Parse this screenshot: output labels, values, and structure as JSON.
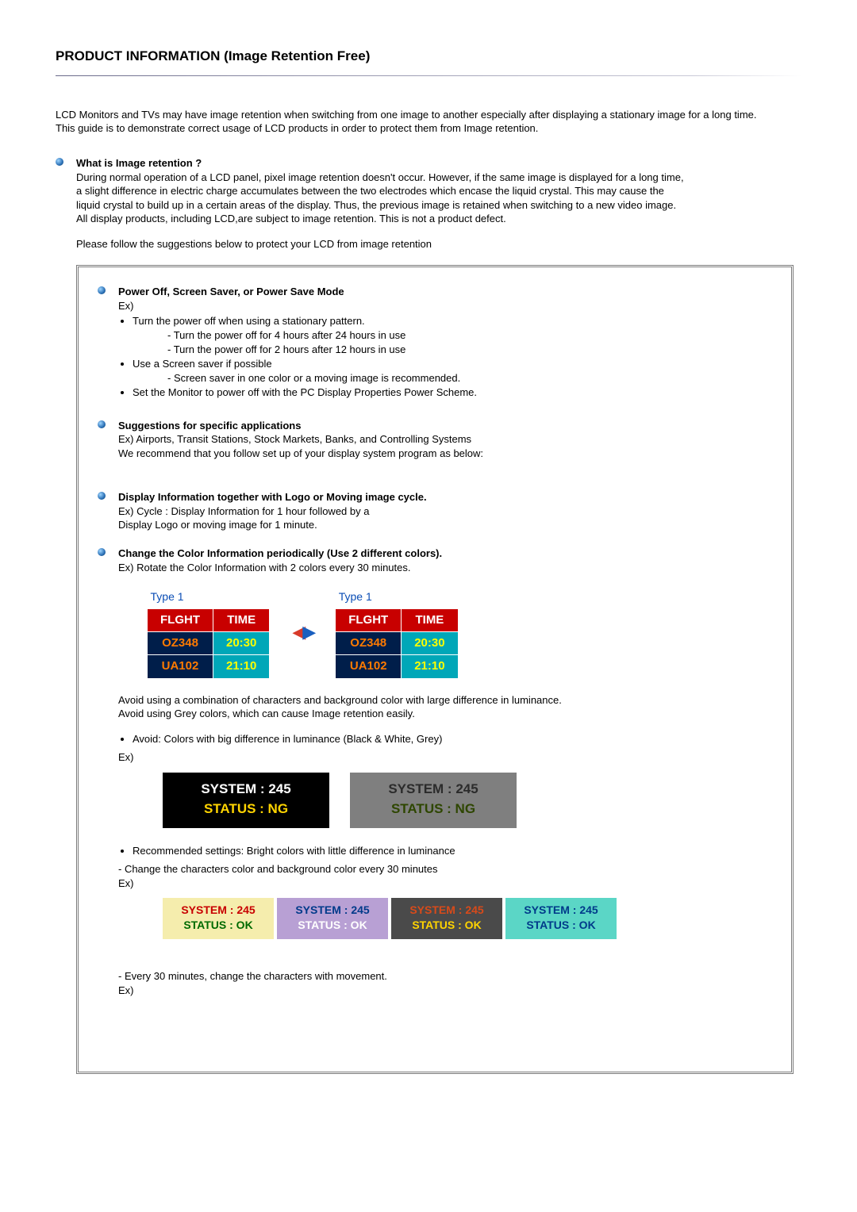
{
  "title": "PRODUCT INFORMATION (Image Retention Free)",
  "intro": {
    "line1": "LCD Monitors and TVs may have image retention when switching from one image to another especially after displaying a stationary image for a long time.",
    "line2": "This guide is to demonstrate correct usage of LCD products in order to protect them from Image retention."
  },
  "whatIs": {
    "heading": "What is Image retention ?",
    "body": "During normal operation of a LCD panel, pixel image retention doesn't occur. However, if the same image is displayed for a long time, a slight difference in electric charge accumulates between the two electrodes which encase the liquid crystal. This may cause the liquid crystal to build up in a certain areas of the display. Thus, the previous image is retained when switching to a new video image. All display products, including LCD,are subject to image retention. This is not a product defect.",
    "follow": "Please follow the suggestions below to protect your LCD from image retention"
  },
  "box": {
    "powerOff": {
      "heading": "Power Off, Screen Saver, or Power Save Mode",
      "ex": "Ex)",
      "li1": "Turn the power off when using a stationary pattern.",
      "li1a": "- Turn the power off for 4 hours after 24 hours in use",
      "li1b": "- Turn the power off for 2 hours after 12 hours in use",
      "li2": "Use a Screen saver if possible",
      "li2a": "- Screen saver in one color or a moving image is recommended.",
      "li3": "Set the Monitor to power off with the PC Display Properties Power Scheme."
    },
    "specific": {
      "heading": "Suggestions for specific applications",
      "l1": "Ex) Airports, Transit Stations, Stock Markets, Banks, and Controlling Systems",
      "l2": "We recommend that you follow set up of your display system program as below:"
    },
    "displayInfo": {
      "heading": "Display Information together with Logo or Moving image cycle.",
      "l1": "Ex) Cycle : Display Information for 1 hour followed by a",
      "l2": "Display Logo or moving image for 1 minute."
    },
    "changeColor": {
      "heading": "Change the Color Information periodically (Use 2 different colors).",
      "l1": "Ex) Rotate the Color Information with 2 colors every 30 minutes."
    },
    "flightTable": {
      "caption": "Type 1",
      "col1": "FLGHT",
      "col2": "TIME",
      "rows": [
        {
          "flight": "OZ348",
          "time": "20:30"
        },
        {
          "flight": "UA102",
          "time": "21:10"
        }
      ]
    },
    "after": {
      "l1": "Avoid using a combination of characters and background color with large difference in luminance.",
      "l2": "Avoid using Grey colors, which can cause Image retention easily.",
      "avoidBullet": "Avoid: Colors with big difference in luminance (Black & White, Grey)",
      "ex": "Ex)"
    },
    "panels": {
      "sysText": "SYSTEM : 245",
      "statusText": "STATUS : NG",
      "bw": {
        "sysColor": "#ffffff",
        "statusColor": "#ffd400",
        "bg": "#000000"
      },
      "grey": {
        "sysColor": "#2b2b2b",
        "statusColor": "#2e4600",
        "bg": "#7f7f7f"
      }
    },
    "recommend": {
      "bullet": "Recommended settings: Bright colors with little difference in luminance",
      "l1": "- Change the characters color and background color every 30 minutes",
      "ex": "Ex)",
      "sys": "SYSTEM : 245",
      "status": "STATUS : OK",
      "cells": [
        {
          "bg": "#f5edad",
          "c1": "#c80000",
          "c2": "#006a00"
        },
        {
          "bg": "#b8a0d4",
          "c1": "#003a8a",
          "c2": "#ffffff"
        },
        {
          "bg": "#4a4a4a",
          "c1": "#d84a1a",
          "c2": "#ffd400"
        },
        {
          "bg": "#5bd6c6",
          "c1": "#003a8a",
          "c2": "#003a8a"
        }
      ],
      "move": "- Every 30 minutes, change the characters with movement.",
      "ex2": "Ex)"
    }
  }
}
